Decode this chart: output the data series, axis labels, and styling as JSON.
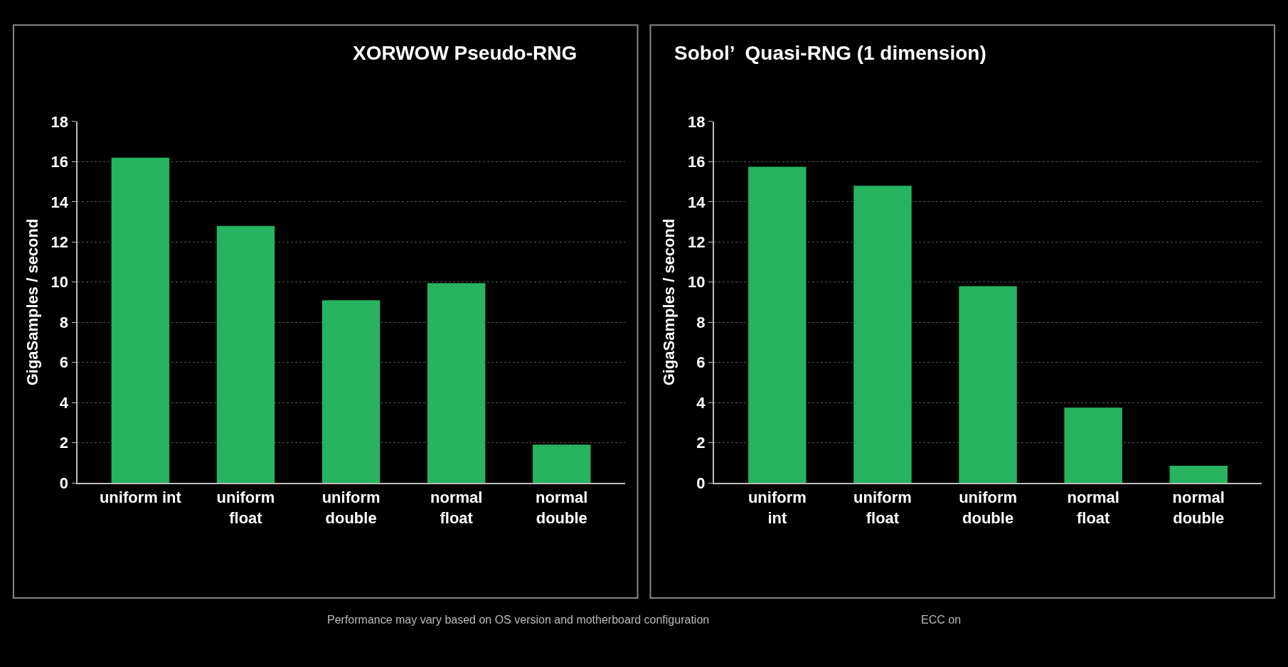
{
  "chart_data": [
    {
      "type": "bar",
      "title": "XORWOW Pseudo-RNG",
      "ylabel": "GigaSamples / second",
      "categories": [
        "uniform int",
        "uniform\nfloat",
        "uniform\ndouble",
        "normal\nfloat",
        "normal\ndouble"
      ],
      "values": [
        16.2,
        12.8,
        9.1,
        9.95,
        1.9
      ],
      "color": "#27b35f",
      "ylim": [
        0,
        18
      ],
      "yticks": [
        0,
        2,
        4,
        6,
        8,
        10,
        12,
        14,
        16,
        18
      ],
      "grid": "y",
      "annotations": [
        "Performance may vary based on OS version and motherboard configuration"
      ]
    },
    {
      "type": "bar",
      "title": "Sobol’  Quasi-RNG (1 dimension)",
      "ylabel": "GigaSamples / second",
      "categories": [
        "uniform\nint",
        "uniform\nfloat",
        "uniform\ndouble",
        "normal\nfloat",
        "normal\ndouble"
      ],
      "values": [
        15.75,
        14.8,
        9.8,
        3.75,
        0.85
      ],
      "color": "#27b35f",
      "ylim": [
        0,
        18
      ],
      "yticks": [
        0,
        2,
        4,
        6,
        8,
        10,
        12,
        14,
        16,
        18
      ],
      "grid": "y",
      "annotations": [
        "ECC on"
      ]
    }
  ]
}
